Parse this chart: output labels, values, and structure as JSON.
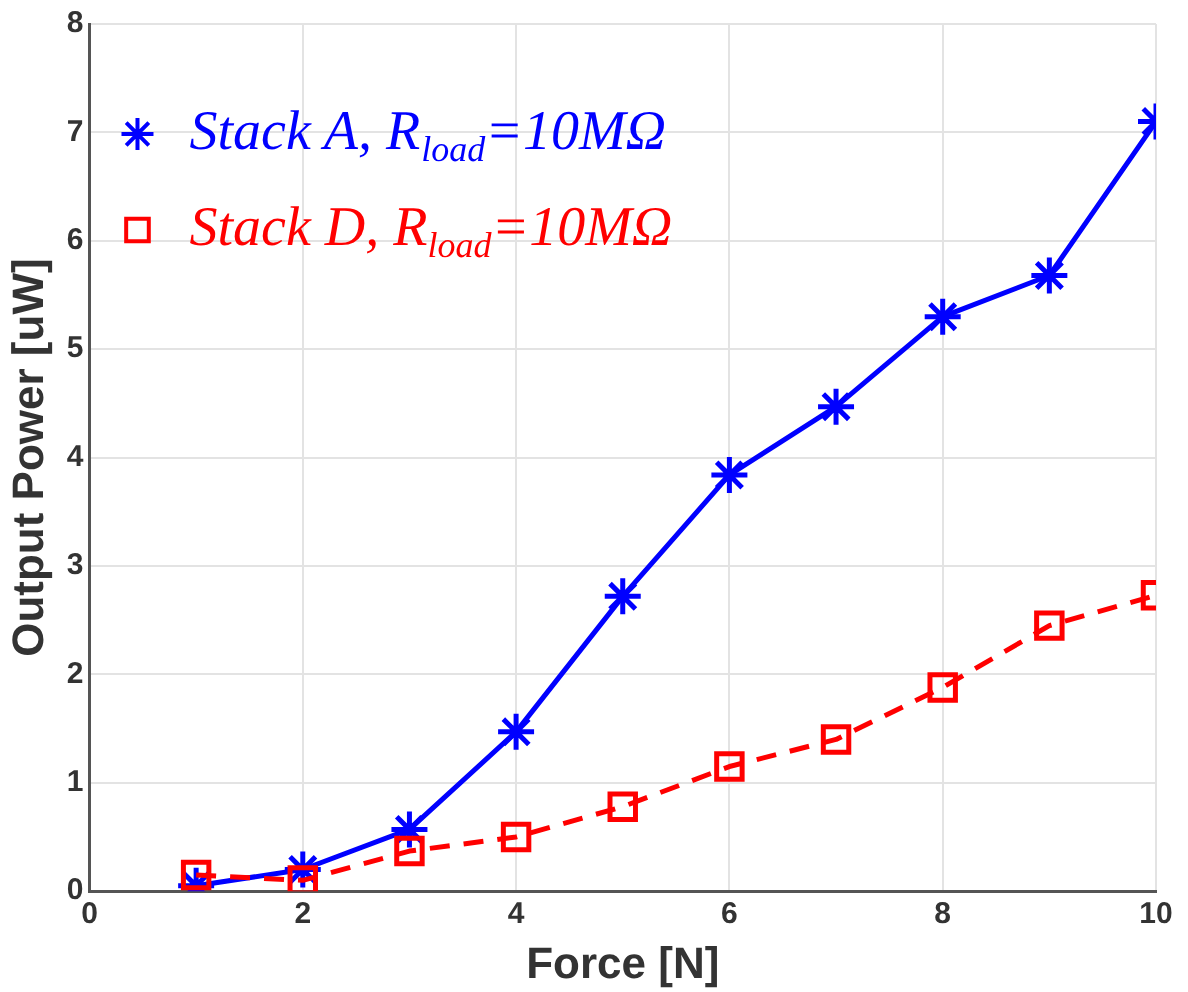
{
  "chart_data": {
    "type": "line",
    "xlabel": "Force [N]",
    "ylabel": "Output Power [uW]",
    "x": [
      1,
      2,
      3,
      4,
      5,
      6,
      7,
      8,
      9,
      10
    ],
    "series": [
      {
        "name": "Stack A, R$_{load}$=10MΩ",
        "color": "#0000ff",
        "marker": "cross",
        "line_style": "solid",
        "values": [
          0.05,
          0.2,
          0.57,
          1.47,
          2.72,
          3.84,
          4.47,
          5.3,
          5.68,
          7.1
        ]
      },
      {
        "name": "Stack D, R$_{load}$=10MΩ",
        "color": "#ff0000",
        "marker": "square",
        "line_style": "dashed",
        "values": [
          0.15,
          0.1,
          0.37,
          0.5,
          0.78,
          1.15,
          1.4,
          1.88,
          2.45,
          2.73
        ]
      }
    ],
    "xlim": [
      0,
      10
    ],
    "xticks": [
      0,
      2,
      4,
      6,
      8,
      10
    ],
    "ylim": [
      0,
      8
    ],
    "yticks": [
      0,
      1,
      2,
      3,
      4,
      5,
      6,
      7,
      8
    ],
    "grid": true,
    "legend": "top left"
  }
}
